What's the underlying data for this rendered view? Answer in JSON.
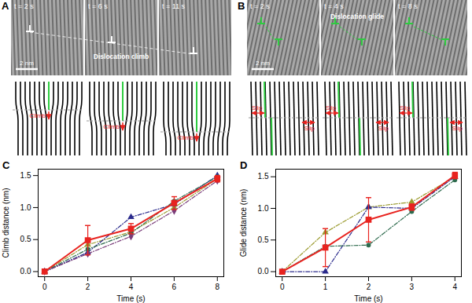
{
  "panels": [
    {
      "panel_label": "A",
      "annotation": "Dislocation climb",
      "scale_bar": "2 nm",
      "frames": [
        {
          "label": "t = 2 s",
          "schematic_labels": [
            "Climb"
          ]
        },
        {
          "label": "t = 6 s",
          "schematic_labels": [
            "Climb"
          ]
        },
        {
          "label": "t = 11 s",
          "schematic_labels": [
            "Climb"
          ]
        }
      ]
    },
    {
      "panel_label": "B",
      "annotation": "Dislocation glide",
      "scale_bar": "2 nm",
      "frames": [
        {
          "label": "t = 2 s",
          "schematic_labels": [
            "Slip",
            "Slip"
          ]
        },
        {
          "label": "t = 4 s",
          "schematic_labels": [
            "Slip",
            "Slip"
          ]
        },
        {
          "label": "t = 8 s",
          "schematic_labels": [
            "Slip",
            "Slip"
          ]
        }
      ]
    }
  ],
  "chart_data": [
    {
      "type": "line",
      "panel_label": "C",
      "x_label": "Time (s)",
      "y_label": "Climb distance (nm)",
      "x": [
        0,
        2,
        4,
        6,
        8
      ],
      "xlim": [
        -0.3,
        8.3
      ],
      "xticks": [
        0,
        2,
        4,
        6,
        8
      ],
      "ylim": [
        -0.08,
        1.6
      ],
      "yticks": [
        {
          "value": 0,
          "label": "0.0"
        },
        {
          "value": 0.5,
          "label": "0.5"
        },
        {
          "value": 1,
          "label": "1.0"
        },
        {
          "value": 1.5,
          "label": "1.5"
        }
      ],
      "grid": false,
      "series": [
        {
          "color": "#9a9a2e",
          "line_style": "dashdot",
          "marker": "triangle",
          "values": [
            0,
            0.42,
            0.62,
            1.0,
            1.45
          ]
        },
        {
          "color": "#2b2b8c",
          "line_style": "dashdot",
          "marker": "triangle",
          "values": [
            0,
            0.3,
            0.85,
            1.05,
            1.5
          ]
        },
        {
          "color": "#2e6b4e",
          "line_style": "dashdot",
          "marker": "circle",
          "values": [
            0,
            0.35,
            0.6,
            1.1,
            1.48
          ]
        },
        {
          "color": "#7a3d7a",
          "line_style": "dashdot",
          "marker": "diamond",
          "values": [
            0,
            0.28,
            0.55,
            0.95,
            1.42
          ]
        },
        {
          "color": "#e8231f",
          "line_style": "solid",
          "marker": "square",
          "values": [
            0,
            0.49,
            0.67,
            1.07,
            1.45
          ],
          "errors": [
            null,
            0.23,
            0.08,
            0.1,
            0.05
          ]
        }
      ]
    },
    {
      "type": "line",
      "panel_label": "D",
      "x_label": "Time (s)",
      "y_label": "Glide distance (nm)",
      "x": [
        0,
        1,
        2,
        3,
        4
      ],
      "xlim": [
        -0.15,
        4.15
      ],
      "xticks": [
        0,
        1,
        2,
        3,
        4
      ],
      "ylim": [
        -0.08,
        1.62
      ],
      "yticks": [
        {
          "value": 0,
          "label": "0.0"
        },
        {
          "value": 0.5,
          "label": "0.5"
        },
        {
          "value": 1,
          "label": "1.0"
        },
        {
          "value": 1.5,
          "label": "1.5"
        }
      ],
      "grid": false,
      "series": [
        {
          "color": "#9a9a2e",
          "line_style": "dashdot",
          "marker": "triangle",
          "values": [
            0,
            0.62,
            1.02,
            1.1,
            1.5
          ]
        },
        {
          "color": "#2b2b8c",
          "line_style": "dashdot",
          "marker": "triangle",
          "values": [
            0,
            0,
            1.02,
            1.0,
            1.5
          ]
        },
        {
          "color": "#2e6b4e",
          "line_style": "dashdot",
          "marker": "circle",
          "values": [
            0,
            0.4,
            0.42,
            0.95,
            1.45
          ]
        },
        {
          "color": "#e8231f",
          "line_style": "solid",
          "marker": "square",
          "values": [
            0,
            0.38,
            0.82,
            1.02,
            1.52
          ],
          "errors": [
            null,
            0.3,
            0.35,
            0.05,
            0.05
          ]
        }
      ]
    }
  ]
}
